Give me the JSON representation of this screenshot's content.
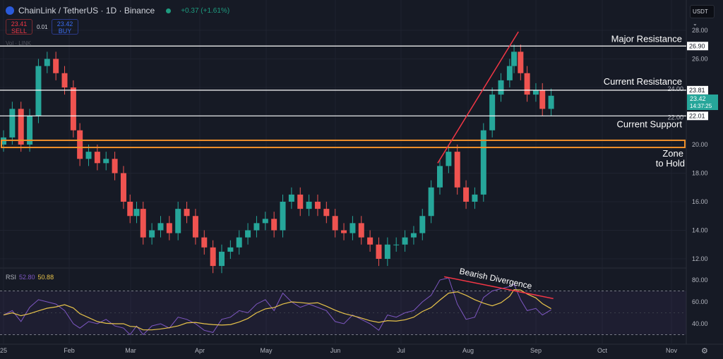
{
  "header": {
    "title": "ChainLink / TetherUS · 1D · Binance",
    "change": "+0.37 (+1.61%)",
    "sell_price": "23.41",
    "sell_label": "SELL",
    "spread": "0.01",
    "buy_price": "23.42",
    "buy_label": "BUY",
    "currency": "USDT",
    "vol_label": "Vol · LINK"
  },
  "colors": {
    "up": "#26a69a",
    "down": "#ef5350",
    "rsi": "#7e57c2",
    "rsi_ma": "#e7c34a",
    "zone": "#f0902a",
    "trend": "#f23645",
    "last_price": "#26a69a"
  },
  "chart_data": [
    {
      "type": "candlestick",
      "yticks": [
        "28.00",
        "26.00",
        "24.00",
        "22.00",
        "20.00",
        "18.00",
        "16.00",
        "14.00",
        "12.00"
      ],
      "xticks": [
        "25",
        "Feb",
        "Mar",
        "Apr",
        "May",
        "Jun",
        "Jul",
        "Aug",
        "Sep",
        "Oct",
        "Nov"
      ],
      "ylim": [
        12,
        28
      ],
      "grid": true,
      "last_price": "23.42",
      "countdown": "14:37:25",
      "levels": [
        {
          "value": 26.9,
          "label": "26.90",
          "text": "Major Resistance"
        },
        {
          "value": 23.81,
          "label": "23.81",
          "text": "Current Resistance"
        },
        {
          "value": 22.01,
          "label": "22.01",
          "text": "Current Support"
        }
      ],
      "zone": {
        "from": 19.8,
        "to": 20.3,
        "text1": "Zone",
        "text2": "to Hold"
      },
      "trendline": [
        [
          "2025-07-19",
          18.7
        ],
        [
          "2025-08-25",
          27.9
        ]
      ],
      "closes": [
        [
          "2025-01-01",
          20.5
        ],
        [
          "2025-01-05",
          22.5
        ],
        [
          "2025-01-09",
          20
        ],
        [
          "2025-01-13",
          22
        ],
        [
          "2025-01-17",
          25.5
        ],
        [
          "2025-01-21",
          26
        ],
        [
          "2025-01-25",
          25
        ],
        [
          "2025-01-29",
          24
        ],
        [
          "2025-02-02",
          21
        ],
        [
          "2025-02-05",
          19
        ],
        [
          "2025-02-09",
          19.5
        ],
        [
          "2025-02-13",
          18.7
        ],
        [
          "2025-02-17",
          19
        ],
        [
          "2025-02-21",
          18
        ],
        [
          "2025-02-25",
          16
        ],
        [
          "2025-02-28",
          15
        ],
        [
          "2025-03-03",
          15.5
        ],
        [
          "2025-03-06",
          13.5
        ],
        [
          "2025-03-10",
          14
        ],
        [
          "2025-03-14",
          14.5
        ],
        [
          "2025-03-18",
          13.8
        ],
        [
          "2025-03-22",
          15.5
        ],
        [
          "2025-03-26",
          15
        ],
        [
          "2025-03-30",
          13.5
        ],
        [
          "2025-04-03",
          12.8
        ],
        [
          "2025-04-07",
          11.5
        ],
        [
          "2025-04-11",
          12.5
        ],
        [
          "2025-04-15",
          12.8
        ],
        [
          "2025-04-19",
          13.5
        ],
        [
          "2025-04-23",
          14
        ],
        [
          "2025-04-27",
          14.5
        ],
        [
          "2025-05-01",
          14.8
        ],
        [
          "2025-05-05",
          14
        ],
        [
          "2025-05-09",
          16
        ],
        [
          "2025-05-13",
          16.5
        ],
        [
          "2025-05-17",
          15.5
        ],
        [
          "2025-05-21",
          16
        ],
        [
          "2025-05-25",
          15.5
        ],
        [
          "2025-05-29",
          15
        ],
        [
          "2025-06-02",
          14
        ],
        [
          "2025-06-06",
          13.8
        ],
        [
          "2025-06-10",
          14.5
        ],
        [
          "2025-06-14",
          13.5
        ],
        [
          "2025-06-18",
          13
        ],
        [
          "2025-06-22",
          12
        ],
        [
          "2025-06-26",
          13
        ],
        [
          "2025-06-30",
          13
        ],
        [
          "2025-07-04",
          13.5
        ],
        [
          "2025-07-08",
          13.8
        ],
        [
          "2025-07-12",
          15
        ],
        [
          "2025-07-16",
          17
        ],
        [
          "2025-07-20",
          18.5
        ],
        [
          "2025-07-24",
          19.5
        ],
        [
          "2025-07-28",
          17
        ],
        [
          "2025-08-01",
          16
        ],
        [
          "2025-08-05",
          16.5
        ],
        [
          "2025-08-09",
          21
        ],
        [
          "2025-08-13",
          23.5
        ],
        [
          "2025-08-17",
          24.5
        ],
        [
          "2025-08-21",
          25.5
        ],
        [
          "2025-08-23",
          26.5
        ],
        [
          "2025-08-26",
          25
        ],
        [
          "2025-08-29",
          23.5
        ],
        [
          "2025-09-02",
          23.8
        ],
        [
          "2025-09-05",
          22.5
        ],
        [
          "2025-09-09",
          23.42
        ]
      ]
    },
    {
      "type": "line",
      "title": "RSI",
      "value": "52.80",
      "ma_value": "50.88",
      "yticks": [
        "80.00",
        "60.00",
        "40.00"
      ],
      "bands": [
        30,
        70
      ],
      "annotation": "Bearish Divergence",
      "divergence_line": [
        [
          "2025-07-22",
          83
        ],
        [
          "2025-09-10",
          63
        ]
      ],
      "rsi": [
        [
          "2025-01-01",
          48
        ],
        [
          "2025-01-05",
          52
        ],
        [
          "2025-01-09",
          42
        ],
        [
          "2025-01-13",
          55
        ],
        [
          "2025-01-17",
          62
        ],
        [
          "2025-01-21",
          60
        ],
        [
          "2025-01-25",
          58
        ],
        [
          "2025-01-29",
          52
        ],
        [
          "2025-02-02",
          40
        ],
        [
          "2025-02-05",
          36
        ],
        [
          "2025-02-09",
          42
        ],
        [
          "2025-02-13",
          40
        ],
        [
          "2025-02-17",
          44
        ],
        [
          "2025-02-21",
          38
        ],
        [
          "2025-02-25",
          36
        ],
        [
          "2025-02-28",
          30
        ],
        [
          "2025-03-03",
          38
        ],
        [
          "2025-03-06",
          30
        ],
        [
          "2025-03-10",
          38
        ],
        [
          "2025-03-14",
          40
        ],
        [
          "2025-03-18",
          36
        ],
        [
          "2025-03-22",
          46
        ],
        [
          "2025-03-26",
          44
        ],
        [
          "2025-03-30",
          40
        ],
        [
          "2025-04-03",
          34
        ],
        [
          "2025-04-07",
          32
        ],
        [
          "2025-04-11",
          44
        ],
        [
          "2025-04-15",
          46
        ],
        [
          "2025-04-19",
          52
        ],
        [
          "2025-04-23",
          50
        ],
        [
          "2025-04-27",
          58
        ],
        [
          "2025-05-01",
          62
        ],
        [
          "2025-05-05",
          52
        ],
        [
          "2025-05-09",
          68
        ],
        [
          "2025-05-13",
          60
        ],
        [
          "2025-05-17",
          55
        ],
        [
          "2025-05-21",
          58
        ],
        [
          "2025-05-25",
          55
        ],
        [
          "2025-05-29",
          52
        ],
        [
          "2025-06-02",
          42
        ],
        [
          "2025-06-06",
          40
        ],
        [
          "2025-06-10",
          48
        ],
        [
          "2025-06-14",
          44
        ],
        [
          "2025-06-18",
          40
        ],
        [
          "2025-06-22",
          34
        ],
        [
          "2025-06-26",
          48
        ],
        [
          "2025-06-30",
          46
        ],
        [
          "2025-07-04",
          50
        ],
        [
          "2025-07-08",
          52
        ],
        [
          "2025-07-12",
          60
        ],
        [
          "2025-07-16",
          66
        ],
        [
          "2025-07-20",
          80
        ],
        [
          "2025-07-24",
          82
        ],
        [
          "2025-07-28",
          58
        ],
        [
          "2025-08-01",
          44
        ],
        [
          "2025-08-05",
          46
        ],
        [
          "2025-08-09",
          64
        ],
        [
          "2025-08-13",
          70
        ],
        [
          "2025-08-17",
          72
        ],
        [
          "2025-08-21",
          74
        ],
        [
          "2025-08-23",
          76
        ],
        [
          "2025-08-26",
          62
        ],
        [
          "2025-08-29",
          52
        ],
        [
          "2025-09-02",
          54
        ],
        [
          "2025-09-05",
          48
        ],
        [
          "2025-09-09",
          52.8
        ]
      ]
    }
  ]
}
